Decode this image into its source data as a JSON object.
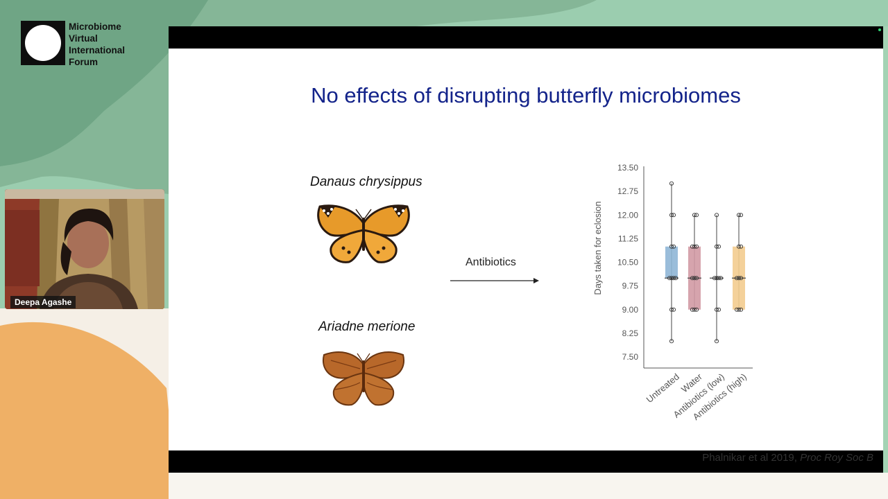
{
  "brand": {
    "lines": [
      "Microbiome",
      "Virtual",
      "International",
      "Forum"
    ]
  },
  "slide": {
    "title": "No effects of disrupting butterfly microbiomes",
    "species": [
      "Danaus chrysippus",
      "Ariadne merione"
    ],
    "treatment_label": "Antibiotics",
    "citation_text": "Phalnikar et al 2019, ",
    "citation_journal": "Proc Roy Soc B"
  },
  "participant": {
    "name": "Deepa Agashe"
  },
  "colors": {
    "title": "#13238a",
    "untreated": "#8fb6d6",
    "water": "#d29aa4",
    "antibiotics_high": "#f3cc8f"
  },
  "chart_data": {
    "type": "box",
    "ylabel": "Days taken for eclosion",
    "yticks": [
      "13.50",
      "12.75",
      "12.00",
      "11.25",
      "10.50",
      "9.75",
      "9.00",
      "8.25",
      "7.50"
    ],
    "ylim": [
      7.5,
      13.5
    ],
    "categories": [
      "Untreated",
      "Water",
      "Antibiotics (low)",
      "Antibiotics (high)"
    ],
    "series": [
      {
        "min": 8,
        "q1": 10,
        "median": 10,
        "q3": 11,
        "max": 13,
        "points": [
          13,
          12,
          12,
          11,
          11,
          10,
          10,
          10,
          10,
          9,
          9,
          8
        ]
      },
      {
        "min": 9,
        "q1": 9,
        "median": 10,
        "q3": 11,
        "max": 12,
        "points": [
          12,
          12,
          11,
          11,
          11,
          10,
          10,
          10,
          9,
          9,
          9
        ]
      },
      {
        "min": 8,
        "q1": 10,
        "median": 10,
        "q3": 10,
        "max": 12,
        "points": [
          12,
          11,
          11,
          10,
          10,
          10,
          10,
          9,
          9,
          8
        ]
      },
      {
        "min": 9,
        "q1": 9,
        "median": 10,
        "q3": 11,
        "max": 12,
        "points": [
          12,
          12,
          11,
          11,
          10,
          10,
          10,
          9,
          9,
          9
        ]
      }
    ]
  }
}
